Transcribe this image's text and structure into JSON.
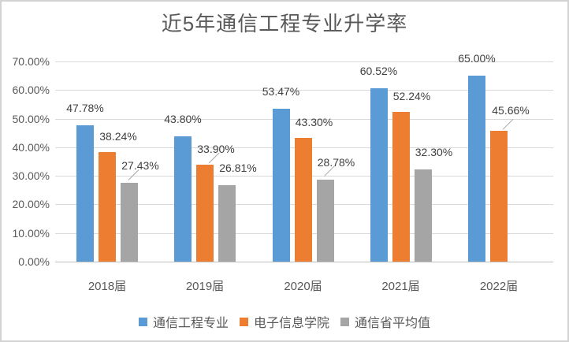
{
  "chart_data": {
    "type": "bar",
    "title": "近5年通信工程专业升学率",
    "categories": [
      "2018届",
      "2019届",
      "2020届",
      "2021届",
      "2022届"
    ],
    "series": [
      {
        "name": "通信工程专业",
        "color": "#5B9BD5",
        "values": [
          47.78,
          43.8,
          53.47,
          60.52,
          65.0
        ]
      },
      {
        "name": "电子信息学院",
        "color": "#ED7D31",
        "values": [
          38.24,
          33.9,
          43.3,
          52.24,
          45.66
        ]
      },
      {
        "name": "通信省平均值",
        "color": "#A5A5A5",
        "values": [
          27.43,
          26.81,
          28.78,
          32.3,
          null
        ]
      }
    ],
    "data_labels": [
      [
        "47.78%",
        "43.80%",
        "53.47%",
        "60.52%",
        "65.00%"
      ],
      [
        "38.24%",
        "33.90%",
        "43.30%",
        "52.24%",
        "45.66%"
      ],
      [
        "27.43%",
        "26.81%",
        "28.78%",
        "32.30%",
        null
      ]
    ],
    "y_axis": {
      "ticks": [
        "0.00%",
        "10.00%",
        "20.00%",
        "30.00%",
        "40.00%",
        "50.00%",
        "60.00%",
        "70.00%"
      ],
      "min": 0,
      "max": 70
    },
    "grid": true,
    "legend_position": "bottom",
    "label_leader_lines": [
      {
        "series": 2,
        "category": 0
      },
      {
        "series": 1,
        "category": 1
      },
      {
        "series": 2,
        "category": 2
      },
      {
        "series": 1,
        "category": 4
      }
    ],
    "colors": {
      "gridline": "#D9D9D9",
      "axis_line": "#BFBFBF",
      "axis_text": "#595959",
      "data_label": "#404040",
      "frame_border": "#D3D3D3",
      "leader_line": "#A6A6A6"
    }
  }
}
